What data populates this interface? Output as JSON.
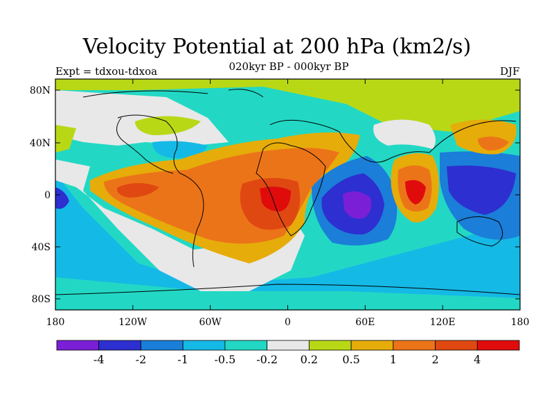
{
  "title": "Velocity Potential at 200 hPa (km2/s)",
  "subtitle": "020kyr BP - 000kyr BP",
  "left_label": "Expt = tdxou-tdxoa",
  "right_label": "DJF",
  "map": {
    "x_ticks": [
      "180",
      "120W",
      "60W",
      "0",
      "60E",
      "120E",
      "180"
    ],
    "y_ticks": [
      "80N",
      "40N",
      "0",
      "40S",
      "80S"
    ]
  },
  "colorbar": {
    "colors": [
      "#7a1fd6",
      "#2d2fd0",
      "#1b7ed8",
      "#15b9e6",
      "#22d8c4",
      "#e8e8e8",
      "#b8d816",
      "#e6ac0a",
      "#ec7418",
      "#e04812",
      "#e00c0c"
    ],
    "labels": [
      "-4",
      "-2",
      "-1",
      "-0.5",
      "-0.2",
      "0.2",
      "0.5",
      "1",
      "2",
      "4"
    ]
  }
}
